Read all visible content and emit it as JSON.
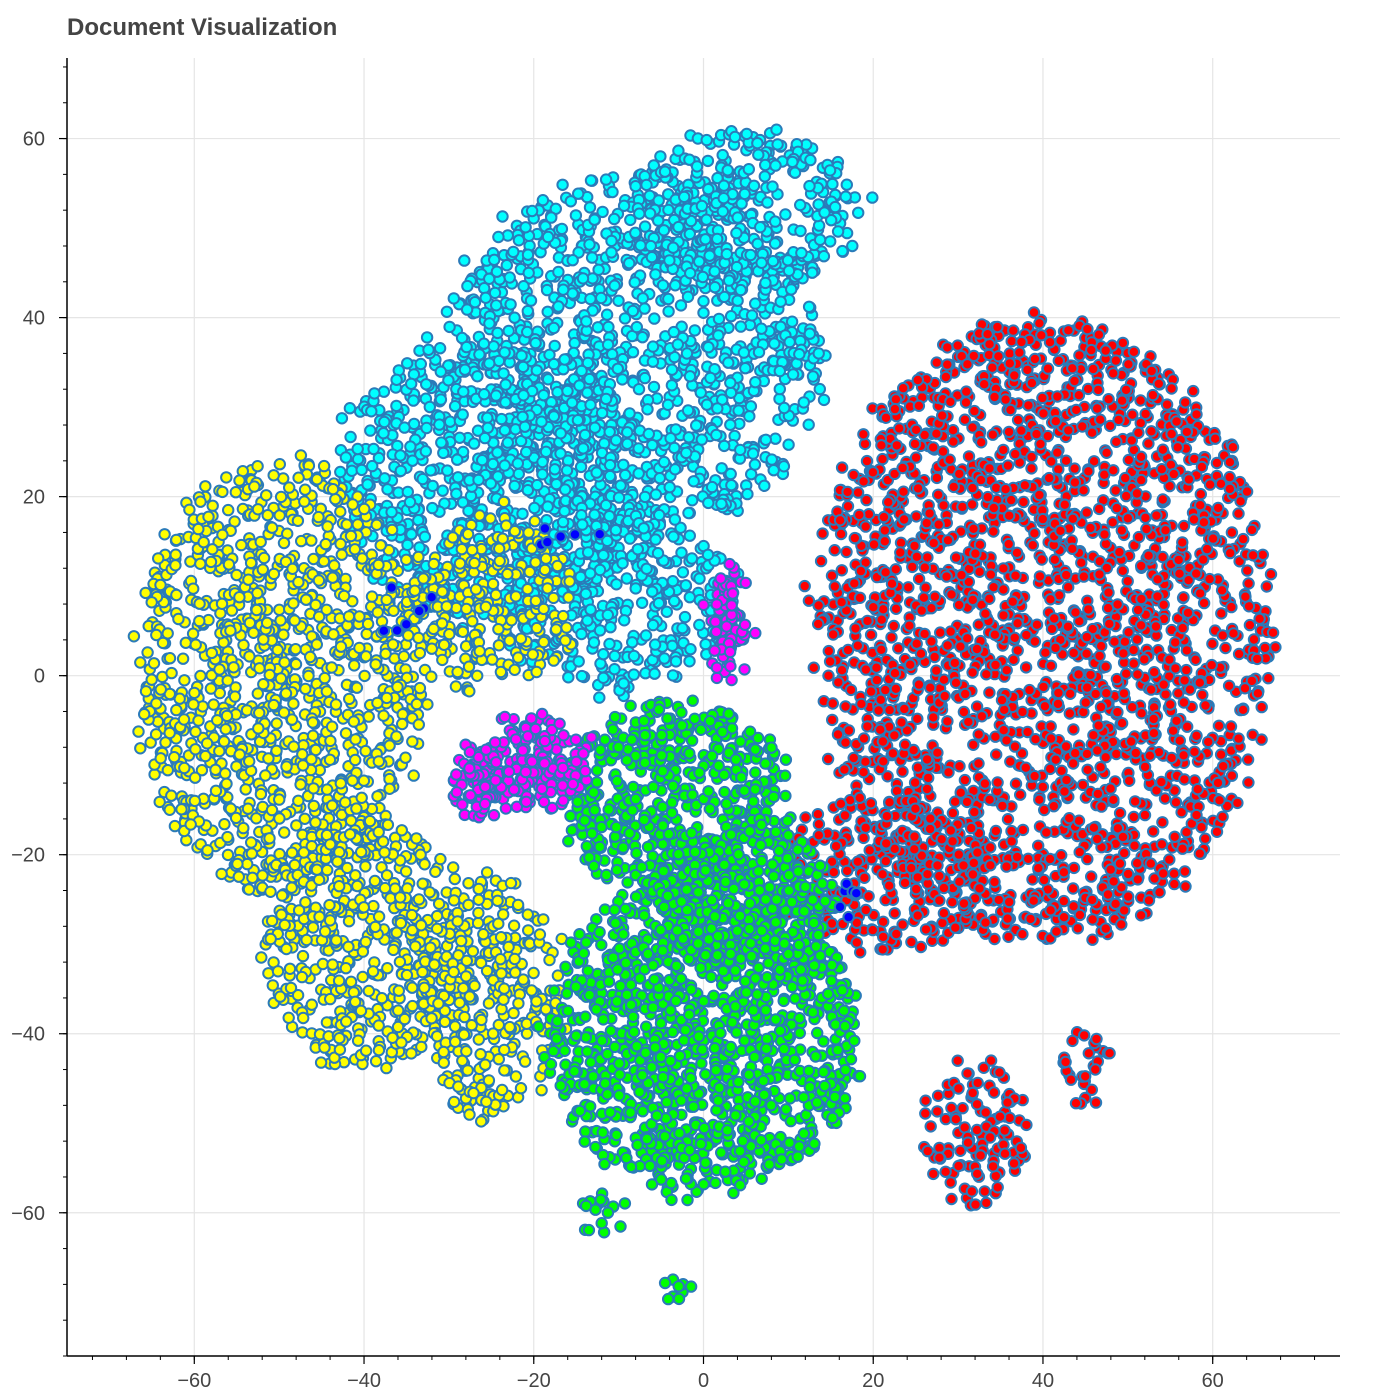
{
  "chart_data": {
    "type": "scatter",
    "title": "Document Visualization",
    "xlabel": "",
    "ylabel": "",
    "xlim": [
      -75,
      75
    ],
    "ylim": [
      -76,
      69
    ],
    "x_ticks": [
      -60,
      -40,
      -20,
      0,
      20,
      40,
      60
    ],
    "y_ticks": [
      60,
      40,
      20,
      0,
      -20,
      -40,
      -60
    ],
    "x_tick_labels": [
      "−60",
      "−40",
      "−20",
      "0",
      "20",
      "40",
      "60"
    ],
    "y_tick_labels": [
      "60",
      "40",
      "20",
      "0",
      "−20",
      "−40",
      "−60"
    ],
    "grid": true,
    "legend": "none",
    "marker_outline_color": "#2b7bb9",
    "clusters": [
      {
        "color": "#00ffff",
        "approx_points": 2600,
        "regions": [
          {
            "center": [
              -8,
              36
            ],
            "radius": [
              22,
              20
            ]
          },
          {
            "center": [
              -25,
              22
            ],
            "radius": [
              18,
              16
            ]
          },
          {
            "center": [
              -10,
              8
            ],
            "radius": [
              14,
              10
            ]
          },
          {
            "center": [
              5,
              52
            ],
            "radius": [
              14,
              9
            ]
          }
        ]
      },
      {
        "color": "#ff0000",
        "approx_points": 2600,
        "regions": [
          {
            "center": [
              40,
              5
            ],
            "radius": [
              27,
              35
            ]
          },
          {
            "center": [
              22,
              -22
            ],
            "radius": [
              12,
              9
            ]
          },
          {
            "center": [
              32,
              -51
            ],
            "radius": [
              6,
              8
            ]
          },
          {
            "center": [
              45,
              -44
            ],
            "radius": [
              3,
              4
            ]
          }
        ]
      },
      {
        "color": "#ffff00",
        "approx_points": 2200,
        "regions": [
          {
            "center": [
              -50,
              0
            ],
            "radius": [
              17,
              24
            ]
          },
          {
            "center": [
              -40,
              -30
            ],
            "radius": [
              12,
              14
            ]
          },
          {
            "center": [
              -25,
              -36
            ],
            "radius": [
              8,
              14
            ]
          },
          {
            "center": [
              -25,
              8
            ],
            "radius": [
              10,
              10
            ]
          }
        ]
      },
      {
        "color": "#00ff00",
        "approx_points": 2200,
        "regions": [
          {
            "center": [
              0,
              -40
            ],
            "radius": [
              18,
              18
            ]
          },
          {
            "center": [
              -3,
              -14
            ],
            "radius": [
              13,
              11
            ]
          },
          {
            "center": [
              5,
              -25
            ],
            "radius": [
              10,
              8
            ]
          },
          {
            "center": [
              -12,
              -60
            ],
            "radius": [
              2,
              2
            ]
          },
          {
            "center": [
              -3,
              -68
            ],
            "radius": [
              1.5,
              1.5
            ]
          }
        ]
      },
      {
        "color": "#ff00ff",
        "approx_points": 320,
        "regions": [
          {
            "center": [
              -20,
              -10
            ],
            "radius": [
              6,
              5
            ]
          },
          {
            "center": [
              -27,
              -12
            ],
            "radius": [
              3,
              4
            ]
          },
          {
            "center": [
              3,
              6
            ],
            "radius": [
              2,
              6
            ]
          }
        ]
      },
      {
        "color": "#0000ff",
        "approx_points": 14,
        "regions": [
          {
            "center": [
              -35,
              7
            ],
            "radius": [
              3,
              3
            ]
          },
          {
            "center": [
              -16,
              15
            ],
            "radius": [
              4,
              2
            ]
          },
          {
            "center": [
              17,
              -25
            ],
            "radius": [
              1,
              1
            ]
          }
        ]
      }
    ]
  }
}
